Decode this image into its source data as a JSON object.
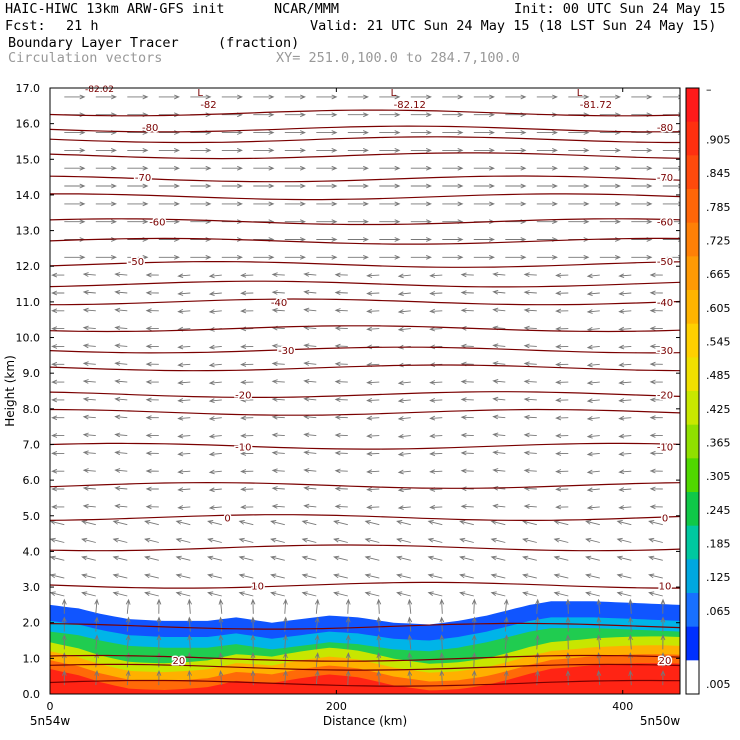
{
  "header": {
    "model": "HAIC-HIWC 13km ARW-GFS init",
    "org": "NCAR/MMM",
    "init": "Init: 00 UTC Sun 24 May 15",
    "fcst_label": "Fcst:",
    "fcst_value": "21 h",
    "valid": "Valid: 21 UTC Sun 24 May 15 (18 LST Sun 24 May 15)",
    "field_name": "Boundary Layer Tracer",
    "field_units": "(fraction)",
    "overlay_name": "Circulation vectors",
    "xy_range": "XY= 251.0,100.0 to 284.7,100.0"
  },
  "chart_data": {
    "type": "heatmap",
    "xlabel": "Distance (km)",
    "ylabel": "Height (km)",
    "xlim": [
      0,
      440
    ],
    "ylim": [
      0,
      17
    ],
    "x_ticks": [
      "0",
      "200",
      "400"
    ],
    "x_tick_values": [
      0,
      200,
      400
    ],
    "x_end_labels": [
      "5n54w",
      "5n50w"
    ],
    "y_ticks": [
      "0.0",
      "1.0",
      "2.0",
      "3.0",
      "4.0",
      "5.0",
      "6.0",
      "7.0",
      "8.0",
      "9.0",
      "10.0",
      "11.0",
      "12.0",
      "13.0",
      "14.0",
      "15.0",
      "16.0",
      "17.0"
    ],
    "colorbar": {
      "labels": [
        "–",
        ".905",
        ".845",
        ".785",
        ".725",
        ".665",
        ".605",
        ".545",
        ".485",
        ".425",
        ".365",
        ".305",
        ".245",
        ".185",
        ".125",
        ".065",
        ".005"
      ],
      "colors": [
        "#ff1a1a",
        "#ff3010",
        "#ff4a0c",
        "#ff6608",
        "#ff8006",
        "#ff9a04",
        "#ffb400",
        "#ffd000",
        "#f0e000",
        "#c8e800",
        "#90e000",
        "#50d800",
        "#10c848",
        "#00c8a0",
        "#00a8e0",
        "#1870ff",
        "#0030ff",
        "#ffffff"
      ]
    },
    "tracer_top_km": [
      [
        0,
        2.5
      ],
      [
        20,
        2.4
      ],
      [
        35,
        2.25
      ],
      [
        55,
        2.1
      ],
      [
        80,
        2.05
      ],
      [
        110,
        2.05
      ],
      [
        130,
        2.15
      ],
      [
        155,
        2.0
      ],
      [
        175,
        2.1
      ],
      [
        195,
        2.2
      ],
      [
        215,
        2.15
      ],
      [
        240,
        2.0
      ],
      [
        265,
        1.95
      ],
      [
        285,
        2.05
      ],
      [
        305,
        2.2
      ],
      [
        320,
        2.35
      ],
      [
        335,
        2.5
      ],
      [
        350,
        2.6
      ],
      [
        380,
        2.6
      ],
      [
        410,
        2.55
      ],
      [
        440,
        2.5
      ]
    ],
    "tracer_zones_km": [
      {
        "level": 0.005,
        "color": "#1055ff",
        "offset": 0.0
      },
      {
        "level": 0.125,
        "color": "#00b4e8",
        "offset": 0.45
      },
      {
        "level": 0.245,
        "color": "#20cc50",
        "offset": 0.75
      },
      {
        "level": 0.425,
        "color": "#c8e600",
        "offset": 1.05
      },
      {
        "level": 0.605,
        "color": "#ffb000",
        "offset": 1.3
      },
      {
        "level": 0.785,
        "color": "#ff6a08",
        "offset": 1.55
      },
      {
        "level": 0.905,
        "color": "#ff2414",
        "offset": 1.8
      }
    ],
    "temperature_contours_c": {
      "labels_left": [
        {
          "value": "20",
          "x_km": 90,
          "z_km": 0.95
        },
        {
          "value": "10",
          "x_km": 145,
          "z_km": 3.05
        },
        {
          "value": "0",
          "x_km": 124,
          "z_km": 4.95
        },
        {
          "value": "-10",
          "x_km": 135,
          "z_km": 6.95
        },
        {
          "value": "-20",
          "x_km": 135,
          "z_km": 8.4
        },
        {
          "value": "-30",
          "x_km": 165,
          "z_km": 9.65
        },
        {
          "value": "-40",
          "x_km": 160,
          "z_km": 11.0
        },
        {
          "value": "-50",
          "x_km": 60,
          "z_km": 12.15
        },
        {
          "value": "-60",
          "x_km": 75,
          "z_km": 13.25
        },
        {
          "value": "-70",
          "x_km": 65,
          "z_km": 14.5
        },
        {
          "value": "-80",
          "x_km": 70,
          "z_km": 15.9
        }
      ],
      "labels_right": [
        "20",
        "10",
        "0",
        "-10",
        "-20",
        "-30",
        "-40",
        "-50",
        "-60",
        "-70",
        "-80"
      ],
      "lines_z_km": [
        0.3,
        0.75,
        1.0,
        1.9,
        3.05,
        4.1,
        4.95,
        5.85,
        6.95,
        7.9,
        8.4,
        9.15,
        9.65,
        10.25,
        11.0,
        11.5,
        12.05,
        12.7,
        13.25,
        13.95,
        14.45,
        15.1,
        15.55,
        15.85,
        16.3
      ],
      "minima": [
        {
          "label": "L",
          "value": "-82",
          "x_km": 105,
          "z_km": 16.95
        },
        {
          "label": "L",
          "value": "-82.12",
          "x_km": 240,
          "z_km": 16.95
        },
        {
          "label": "L",
          "value": "-81.72",
          "x_km": 370,
          "z_km": 16.95
        }
      ],
      "top_partial_label": "-82.02"
    }
  }
}
